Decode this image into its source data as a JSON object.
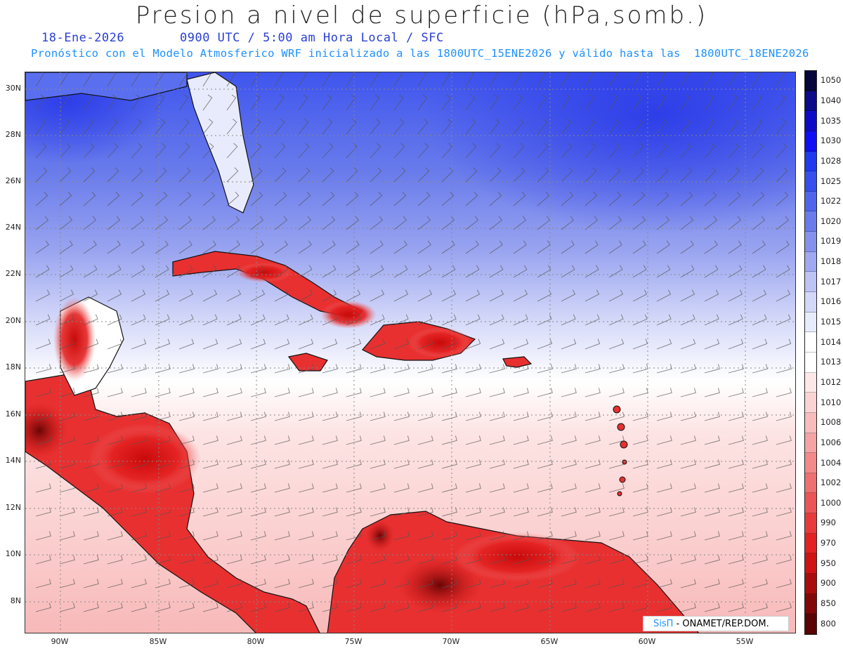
{
  "header": {
    "title": "Presion a nivel de superficie (hPa,somb.)",
    "date": "18-Ene-2026",
    "valid_time": "0900 UTC / 5:00 am Hora Local / SFC",
    "model_info": "Pronóstico con el Modelo Atmosferico WRF inicializado a las 1800UTC_15ENE2026 y válido hasta las  1800UTC_18ENE2026"
  },
  "map": {
    "lat_labels": [
      "30N",
      "28N",
      "26N",
      "24N",
      "22N",
      "20N",
      "18N",
      "16N",
      "14N",
      "12N",
      "10N",
      "8N"
    ],
    "lon_labels": [
      "90W",
      "85W",
      "80W",
      "75W",
      "70W",
      "65W",
      "60W",
      "55W"
    ],
    "colors": {
      "high": "#2a2ae0",
      "neutral": "#ffffff",
      "low": "#e01010"
    }
  },
  "colorbar": {
    "levels": [
      "1050",
      "1040",
      "1035",
      "1030",
      "1028",
      "1025",
      "1022",
      "1020",
      "1019",
      "1018",
      "1017",
      "1016",
      "1015",
      "1014",
      "1013",
      "1012",
      "1010",
      "1008",
      "1006",
      "1004",
      "1002",
      "1000",
      "990",
      "970",
      "950",
      "900",
      "850",
      "800"
    ],
    "colors": [
      "#06063a",
      "#0a0a8a",
      "#0c0cc8",
      "#0f0ff5",
      "#1f3af0",
      "#3550ee",
      "#4f66ec",
      "#6a7ceb",
      "#8492ee",
      "#9fa9f1",
      "#bcc3f5",
      "#d3d8f8",
      "#e8ebfb",
      "#ffffff",
      "#ffffff",
      "#fde8e8",
      "#fbd3d3",
      "#f8bcbc",
      "#f5a3a3",
      "#f28a8a",
      "#ef7070",
      "#ec5555",
      "#e83a3a",
      "#e42222",
      "#d01212",
      "#aa0c0c",
      "#820808",
      "#5a0404"
    ]
  },
  "credit": {
    "brand": "SisΠ",
    "org": " - ONAMET/REP.DOM."
  }
}
